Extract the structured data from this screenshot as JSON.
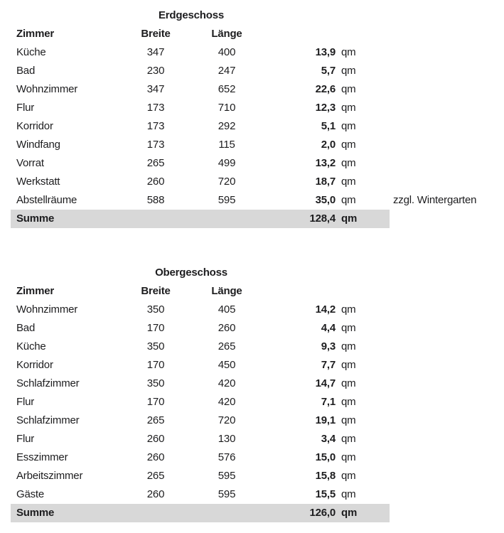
{
  "page": {
    "background_color": "#ffffff",
    "text_color": "#1d1d1f",
    "highlight_color": "#d8d8d8",
    "unit_label": "qm"
  },
  "sections": [
    {
      "title": "Erdgeschoss",
      "headers": {
        "room": "Zimmer",
        "width": "Breite",
        "length": "Länge"
      },
      "rows": [
        {
          "room": "Küche",
          "width": "347",
          "length": "400",
          "area": "13,9",
          "unit": "qm",
          "note": ""
        },
        {
          "room": "Bad",
          "width": "230",
          "length": "247",
          "area": "5,7",
          "unit": "qm",
          "note": ""
        },
        {
          "room": "Wohnzimmer",
          "width": "347",
          "length": "652",
          "area": "22,6",
          "unit": "qm",
          "note": ""
        },
        {
          "room": "Flur",
          "width": "173",
          "length": "710",
          "area": "12,3",
          "unit": "qm",
          "note": ""
        },
        {
          "room": "Korridor",
          "width": "173",
          "length": "292",
          "area": "5,1",
          "unit": "qm",
          "note": ""
        },
        {
          "room": "Windfang",
          "width": "173",
          "length": "115",
          "area": "2,0",
          "unit": "qm",
          "note": ""
        },
        {
          "room": "Vorrat",
          "width": "265",
          "length": "499",
          "area": "13,2",
          "unit": "qm",
          "note": ""
        },
        {
          "room": "Werkstatt",
          "width": "260",
          "length": "720",
          "area": "18,7",
          "unit": "qm",
          "note": ""
        },
        {
          "room": "Abstellräume",
          "width": "588",
          "length": "595",
          "area": "35,0",
          "unit": "qm",
          "note": "zzgl. Wintergarten"
        }
      ],
      "summary": {
        "label": "Summe",
        "area": "128,4",
        "unit": "qm"
      }
    },
    {
      "title": "Obergeschoss",
      "headers": {
        "room": "Zimmer",
        "width": "Breite",
        "length": "Länge"
      },
      "rows": [
        {
          "room": "Wohnzimmer",
          "width": "350",
          "length": "405",
          "area": "14,2",
          "unit": "qm",
          "note": ""
        },
        {
          "room": "Bad",
          "width": "170",
          "length": "260",
          "area": "4,4",
          "unit": "qm",
          "note": ""
        },
        {
          "room": "Küche",
          "width": "350",
          "length": "265",
          "area": "9,3",
          "unit": "qm",
          "note": ""
        },
        {
          "room": "Korridor",
          "width": "170",
          "length": "450",
          "area": "7,7",
          "unit": "qm",
          "note": ""
        },
        {
          "room": "Schlafzimmer",
          "width": "350",
          "length": "420",
          "area": "14,7",
          "unit": "qm",
          "note": ""
        },
        {
          "room": "Flur",
          "width": "170",
          "length": "420",
          "area": "7,1",
          "unit": "qm",
          "note": ""
        },
        {
          "room": "Schlafzimmer",
          "width": "265",
          "length": "720",
          "area": "19,1",
          "unit": "qm",
          "note": ""
        },
        {
          "room": "Flur",
          "width": "260",
          "length": "130",
          "area": "3,4",
          "unit": "qm",
          "note": ""
        },
        {
          "room": "Esszimmer",
          "width": "260",
          "length": "576",
          "area": "15,0",
          "unit": "qm",
          "note": ""
        },
        {
          "room": "Arbeitszimmer",
          "width": "265",
          "length": "595",
          "area": "15,8",
          "unit": "qm",
          "note": ""
        },
        {
          "room": "Gäste",
          "width": "260",
          "length": "595",
          "area": "15,5",
          "unit": "qm",
          "note": ""
        }
      ],
      "summary": {
        "label": "Summe",
        "area": "126,0",
        "unit": "qm"
      }
    }
  ]
}
